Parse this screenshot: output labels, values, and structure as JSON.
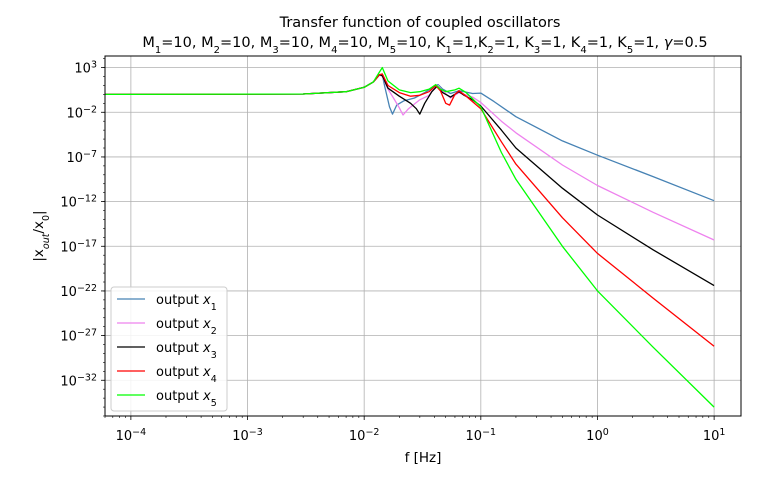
{
  "chart_data": {
    "type": "line",
    "title": "Transfer function of coupled oscillators",
    "subtitle": {
      "parts": [
        {
          "t": "M"
        },
        {
          "t": "1",
          "sub": true
        },
        {
          "t": "=10, M"
        },
        {
          "t": "2",
          "sub": true
        },
        {
          "t": "=10, M"
        },
        {
          "t": "3",
          "sub": true
        },
        {
          "t": "=10, M"
        },
        {
          "t": "4",
          "sub": true
        },
        {
          "t": "=10, M"
        },
        {
          "t": "5",
          "sub": true
        },
        {
          "t": "=10, K"
        },
        {
          "t": "1",
          "sub": true
        },
        {
          "t": "=1,K"
        },
        {
          "t": "2",
          "sub": true
        },
        {
          "t": "=1, K"
        },
        {
          "t": "3",
          "sub": true
        },
        {
          "t": "=1, K"
        },
        {
          "t": "4",
          "sub": true
        },
        {
          "t": "=1, K"
        },
        {
          "t": "5",
          "sub": true
        },
        {
          "t": "=1, "
        },
        {
          "t": "γ",
          "italic": true
        },
        {
          "t": "=0.5"
        }
      ]
    },
    "xlabel": "f [Hz]",
    "ylabel": {
      "parts": [
        {
          "t": "|x"
        },
        {
          "t": "out",
          "sub": true,
          "italic": true
        },
        {
          "t": "/x"
        },
        {
          "t": "0",
          "sub": true
        },
        {
          "t": "|"
        }
      ]
    },
    "xscale": "log",
    "yscale": "log",
    "xlim": [
      6e-05,
      17
    ],
    "ylim_exp": [
      -36,
      4.3
    ],
    "grid": true,
    "legend_position": "lower-left",
    "x_ticks": [
      {
        "value": 0.0001,
        "base": "10",
        "exp": "−4"
      },
      {
        "value": 0.001,
        "base": "10",
        "exp": "−3"
      },
      {
        "value": 0.01,
        "base": "10",
        "exp": "−2"
      },
      {
        "value": 0.1,
        "base": "10",
        "exp": "−1"
      },
      {
        "value": 1,
        "base": "10",
        "exp": "0"
      },
      {
        "value": 10,
        "base": "10",
        "exp": "1"
      }
    ],
    "y_ticks": [
      {
        "exp_value": 3,
        "base": "10",
        "exp": "3"
      },
      {
        "exp_value": -2,
        "base": "10",
        "exp": "−2"
      },
      {
        "exp_value": -7,
        "base": "10",
        "exp": "−7"
      },
      {
        "exp_value": -12,
        "base": "10",
        "exp": "−12"
      },
      {
        "exp_value": -17,
        "base": "10",
        "exp": "−17"
      },
      {
        "exp_value": -22,
        "base": "10",
        "exp": "−22"
      },
      {
        "exp_value": -27,
        "base": "10",
        "exp": "−27"
      },
      {
        "exp_value": -32,
        "base": "10",
        "exp": "−32"
      }
    ],
    "series": [
      {
        "name": "output x1",
        "legend_base": "output ",
        "legend_var": "x",
        "legend_sub": "1",
        "color": "#4682b4",
        "points": [
          [
            6e-05,
            0
          ],
          [
            0.003,
            0.05
          ],
          [
            0.007,
            0.3
          ],
          [
            0.01,
            0.8
          ],
          [
            0.012,
            1.4
          ],
          [
            0.0135,
            2.2
          ],
          [
            0.0143,
            2.2
          ],
          [
            0.015,
            0.9
          ],
          [
            0.0165,
            -1.4
          ],
          [
            0.0175,
            -2.2
          ],
          [
            0.019,
            -1.2
          ],
          [
            0.022,
            -0.7
          ],
          [
            0.027,
            -0.4
          ],
          [
            0.033,
            0.2
          ],
          [
            0.04,
            0.9
          ],
          [
            0.043,
            1.1
          ],
          [
            0.047,
            0.6
          ],
          [
            0.055,
            0.1
          ],
          [
            0.065,
            0.4
          ],
          [
            0.072,
            0.3
          ],
          [
            0.085,
            0.1
          ],
          [
            0.1,
            0.15
          ],
          [
            0.13,
            -0.8
          ],
          [
            0.2,
            -2.5
          ],
          [
            0.5,
            -5.2
          ],
          [
            1,
            -6.8
          ],
          [
            3,
            -9.2
          ],
          [
            10,
            -11.9
          ]
        ]
      },
      {
        "name": "output x2",
        "legend_base": "output ",
        "legend_var": "x",
        "legend_sub": "2",
        "color": "#ee82ee",
        "points": [
          [
            6e-05,
            0
          ],
          [
            0.003,
            0.05
          ],
          [
            0.007,
            0.3
          ],
          [
            0.01,
            0.8
          ],
          [
            0.012,
            1.4
          ],
          [
            0.0135,
            2.2
          ],
          [
            0.0143,
            2.0
          ],
          [
            0.016,
            0.6
          ],
          [
            0.018,
            -0.5
          ],
          [
            0.02,
            -1.5
          ],
          [
            0.0215,
            -2.3
          ],
          [
            0.024,
            -1.6
          ],
          [
            0.03,
            -0.6
          ],
          [
            0.036,
            -0.1
          ],
          [
            0.04,
            0.7
          ],
          [
            0.043,
            1.0
          ],
          [
            0.047,
            0.4
          ],
          [
            0.055,
            -0.4
          ],
          [
            0.065,
            0.2
          ],
          [
            0.072,
            0.0
          ],
          [
            0.085,
            -0.3
          ],
          [
            0.1,
            -0.9
          ],
          [
            0.15,
            -3.0
          ],
          [
            0.2,
            -4.3
          ],
          [
            0.5,
            -7.9
          ],
          [
            1,
            -10.2
          ],
          [
            3,
            -13.2
          ],
          [
            10,
            -16.3
          ]
        ]
      },
      {
        "name": "output x3",
        "legend_base": "output ",
        "legend_var": "x",
        "legend_sub": "3",
        "color": "#000000",
        "points": [
          [
            6e-05,
            0
          ],
          [
            0.003,
            0.05
          ],
          [
            0.007,
            0.3
          ],
          [
            0.01,
            0.8
          ],
          [
            0.012,
            1.4
          ],
          [
            0.0135,
            2.2
          ],
          [
            0.0143,
            2.1
          ],
          [
            0.016,
            0.7
          ],
          [
            0.02,
            -0.2
          ],
          [
            0.025,
            -1.0
          ],
          [
            0.028,
            -1.6
          ],
          [
            0.03,
            -2.2
          ],
          [
            0.033,
            -1.0
          ],
          [
            0.038,
            0.3
          ],
          [
            0.042,
            0.9
          ],
          [
            0.047,
            0.2
          ],
          [
            0.055,
            -0.3
          ],
          [
            0.065,
            0.3
          ],
          [
            0.072,
            -0.1
          ],
          [
            0.085,
            -0.6
          ],
          [
            0.1,
            -1.3
          ],
          [
            0.15,
            -4.0
          ],
          [
            0.2,
            -6.0
          ],
          [
            0.5,
            -10.5
          ],
          [
            1,
            -13.5
          ],
          [
            3,
            -17.4
          ],
          [
            10,
            -21.4
          ]
        ]
      },
      {
        "name": "output x4",
        "legend_base": "output ",
        "legend_var": "x",
        "legend_sub": "4",
        "color": "#ff0000",
        "points": [
          [
            6e-05,
            0
          ],
          [
            0.003,
            0.05
          ],
          [
            0.007,
            0.3
          ],
          [
            0.01,
            0.8
          ],
          [
            0.012,
            1.4
          ],
          [
            0.0135,
            2.2
          ],
          [
            0.0143,
            2.3
          ],
          [
            0.016,
            1.0
          ],
          [
            0.02,
            0.2
          ],
          [
            0.025,
            -0.2
          ],
          [
            0.03,
            -0.1
          ],
          [
            0.036,
            0.3
          ],
          [
            0.041,
            1.0
          ],
          [
            0.045,
            0.4
          ],
          [
            0.05,
            -1.0
          ],
          [
            0.054,
            -1.2
          ],
          [
            0.06,
            0.0
          ],
          [
            0.065,
            0.4
          ],
          [
            0.075,
            -0.2
          ],
          [
            0.1,
            -1.6
          ],
          [
            0.15,
            -5.3
          ],
          [
            0.2,
            -7.8
          ],
          [
            0.5,
            -13.8
          ],
          [
            1,
            -17.8
          ],
          [
            3,
            -22.8
          ],
          [
            10,
            -28.2
          ]
        ]
      },
      {
        "name": "output x5",
        "legend_base": "output ",
        "legend_var": "x",
        "legend_sub": "5",
        "color": "#00ff00",
        "points": [
          [
            6e-05,
            0
          ],
          [
            0.003,
            0.05
          ],
          [
            0.007,
            0.3
          ],
          [
            0.01,
            0.8
          ],
          [
            0.012,
            1.4
          ],
          [
            0.0135,
            2.5
          ],
          [
            0.0143,
            3.0
          ],
          [
            0.016,
            1.5
          ],
          [
            0.02,
            0.5
          ],
          [
            0.025,
            0.2
          ],
          [
            0.03,
            0.3
          ],
          [
            0.036,
            0.6
          ],
          [
            0.041,
            1.1
          ],
          [
            0.045,
            0.6
          ],
          [
            0.05,
            0.3
          ],
          [
            0.06,
            0.5
          ],
          [
            0.065,
            0.7
          ],
          [
            0.075,
            0.2
          ],
          [
            0.1,
            -1.4
          ],
          [
            0.15,
            -6.5
          ],
          [
            0.2,
            -9.5
          ],
          [
            0.5,
            -17.0
          ],
          [
            1,
            -22.0
          ],
          [
            3,
            -28.3
          ],
          [
            10,
            -35.0
          ]
        ]
      }
    ]
  }
}
